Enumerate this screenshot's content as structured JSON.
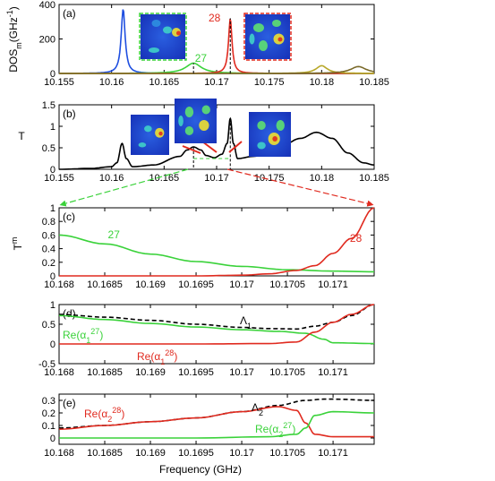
{
  "colors": {
    "blue": "#1f4fe0",
    "green": "#3ad23a",
    "red": "#e02a1f",
    "olive": "#b8a82a",
    "darkolive": "#7a6a2a",
    "black": "#000000",
    "orange": "#ff9f2a"
  },
  "xlabel": "Frequency (GHz)",
  "panels": {
    "a": {
      "tag": "(a)",
      "ylabel": "DOS",
      "ylabel_sub": "m",
      "ylabel_unit": "(GHz",
      "ylabel_sup": "-1",
      "ylabel_close": ")",
      "xticks": [
        "10.155",
        "10.16",
        "10.165",
        "10.17",
        "10.175",
        "10.18",
        "10.185"
      ],
      "yticks": [
        "0",
        "200",
        "400"
      ],
      "ann27": "27",
      "ann28": "28"
    },
    "b": {
      "tag": "(b)",
      "ylabel": "T",
      "xticks": [
        "10.155",
        "10.16",
        "10.165",
        "10.17",
        "10.175",
        "10.18",
        "10.185"
      ],
      "yticks": [
        "0",
        "0.5",
        "1",
        "1.5"
      ]
    },
    "c": {
      "tag": "(c)",
      "ylabel": "T",
      "ylabel_sup": "m",
      "xticks": [
        "10.168",
        "10.1685",
        "10.169",
        "10.1695",
        "10.17",
        "10.1705",
        "10.171"
      ],
      "yticks": [
        "0",
        "0.2",
        "0.4",
        "0.6",
        "0.8",
        "1"
      ],
      "ann27": "27",
      "ann28": "28"
    },
    "d": {
      "tag": "(d)",
      "xticks": [
        "10.168",
        "10.1685",
        "10.169",
        "10.1695",
        "10.17",
        "10.1705",
        "10.171"
      ],
      "yticks": [
        "-0.5",
        "0",
        "0.5",
        "1"
      ],
      "lam": "Λ",
      "lam_sub": "1",
      "green_lbl": "Re(α",
      "green_sub": "1",
      "green_sup": "27",
      "red_lbl": "Re(α",
      "red_sub": "1",
      "red_sup": "28",
      "close": ")"
    },
    "e": {
      "tag": "(e)",
      "xticks": [
        "10.168",
        "10.1685",
        "10.169",
        "10.1695",
        "10.17",
        "10.1705",
        "10.171"
      ],
      "yticks": [
        "0",
        "0.1",
        "0.2",
        "0.3"
      ],
      "lam": "Λ",
      "lam_sub": "2",
      "red_lbl": "Re(α",
      "red_sub": "2",
      "red_sup": "28",
      "green_lbl": "Re(α",
      "green_sub": "2",
      "green_sup": "27",
      "close": ")"
    }
  },
  "chart_data": [
    {
      "type": "line",
      "panel": "a",
      "xlim": [
        10.155,
        10.185
      ],
      "ylim": [
        0,
        400
      ],
      "series": [
        {
          "color": "blue",
          "peaks": [
            [
              10.1611,
              375,
              0.00045
            ]
          ]
        },
        {
          "color": "green",
          "peaks": [
            [
              10.1678,
              60,
              0.0018
            ]
          ]
        },
        {
          "color": "red",
          "peaks": [
            [
              10.1713,
              320,
              0.0004
            ]
          ]
        },
        {
          "color": "olive",
          "peaks": [
            [
              10.18,
              45,
              0.0013
            ]
          ]
        },
        {
          "color": "darkolive",
          "peaks": [
            [
              10.1835,
              40,
              0.0018
            ]
          ]
        }
      ]
    },
    {
      "type": "line",
      "panel": "b",
      "xlim": [
        10.155,
        10.185
      ],
      "ylim": [
        0,
        1.5
      ],
      "x": [
        10.155,
        10.158,
        10.16,
        10.1605,
        10.161,
        10.1614,
        10.162,
        10.164,
        10.1665,
        10.1672,
        10.1678,
        10.1685,
        10.169,
        10.1698,
        10.1705,
        10.171,
        10.1713,
        10.1716,
        10.172,
        10.1735,
        10.176,
        10.178,
        10.1795,
        10.181,
        10.1825,
        10.184,
        10.185
      ],
      "y": [
        0.0,
        0.02,
        0.06,
        0.15,
        0.6,
        0.25,
        0.06,
        0.1,
        0.3,
        0.45,
        0.52,
        0.45,
        0.32,
        0.27,
        0.35,
        0.6,
        1.18,
        0.6,
        0.25,
        0.3,
        0.52,
        0.72,
        0.86,
        0.72,
        0.38,
        0.15,
        0.1
      ]
    },
    {
      "type": "line",
      "panel": "c",
      "xlim": [
        10.168,
        10.17145
      ],
      "ylim": [
        0,
        1
      ],
      "series": [
        {
          "name": "27",
          "color": "green",
          "x": [
            10.168,
            10.1685,
            10.169,
            10.1695,
            10.17,
            10.1705,
            10.171,
            10.17145
          ],
          "y": [
            0.6,
            0.47,
            0.32,
            0.21,
            0.14,
            0.09,
            0.07,
            0.06
          ]
        },
        {
          "name": "28",
          "color": "red",
          "x": [
            10.168,
            10.1695,
            10.17,
            10.1703,
            10.1706,
            10.1708,
            10.171,
            10.1712,
            10.17145
          ],
          "y": [
            0,
            0,
            0.01,
            0.03,
            0.08,
            0.15,
            0.33,
            0.55,
            1.0
          ]
        }
      ]
    },
    {
      "type": "line",
      "panel": "d",
      "xlim": [
        10.168,
        10.17145
      ],
      "ylim": [
        -0.5,
        1
      ],
      "series": [
        {
          "name": "Λ1",
          "color": "black",
          "dashed": true,
          "x": [
            10.168,
            10.1685,
            10.169,
            10.1695,
            10.17,
            10.1703,
            10.1706,
            10.1708,
            10.171,
            10.1712,
            10.17145
          ],
          "y": [
            0.75,
            0.68,
            0.6,
            0.5,
            0.42,
            0.39,
            0.38,
            0.45,
            0.55,
            0.72,
            1.0
          ]
        },
        {
          "name": "Re(α1 27)",
          "color": "green",
          "x": [
            10.168,
            10.1685,
            10.169,
            10.1695,
            10.17,
            10.1704,
            10.1707,
            10.1709,
            10.171,
            10.17145
          ],
          "y": [
            0.72,
            0.62,
            0.52,
            0.43,
            0.36,
            0.32,
            0.27,
            0.12,
            0.03,
            0.01
          ]
        },
        {
          "name": "Re(α1 28)",
          "color": "red",
          "x": [
            10.168,
            10.1695,
            10.1703,
            10.1706,
            10.1708,
            10.171,
            10.1712,
            10.17145
          ],
          "y": [
            0,
            0,
            0.01,
            0.05,
            0.3,
            0.55,
            0.75,
            1.0
          ]
        }
      ]
    },
    {
      "type": "line",
      "panel": "e",
      "xlim": [
        10.168,
        10.17145
      ],
      "ylim": [
        -0.05,
        0.35
      ],
      "series": [
        {
          "name": "Λ2",
          "color": "black",
          "dashed": true,
          "x": [
            10.168,
            10.1685,
            10.169,
            10.1695,
            10.17,
            10.1704,
            10.1707,
            10.1709,
            10.171,
            10.17145
          ],
          "y": [
            0.08,
            0.1,
            0.13,
            0.16,
            0.21,
            0.26,
            0.3,
            0.31,
            0.31,
            0.3
          ]
        },
        {
          "name": "Re(α2 28)",
          "color": "red",
          "x": [
            10.168,
            10.1685,
            10.169,
            10.1695,
            10.17,
            10.1704,
            10.1706,
            10.1707,
            10.1708,
            10.171,
            10.17145
          ],
          "y": [
            0.07,
            0.1,
            0.13,
            0.16,
            0.21,
            0.25,
            0.22,
            0.12,
            0.03,
            0.01,
            0.01
          ]
        },
        {
          "name": "Re(α2 27)",
          "color": "green",
          "x": [
            10.168,
            10.1695,
            10.1703,
            10.1706,
            10.1707,
            10.1708,
            10.171,
            10.17145
          ],
          "y": [
            0,
            0,
            0.01,
            0.03,
            0.08,
            0.18,
            0.21,
            0.2
          ]
        }
      ]
    }
  ]
}
